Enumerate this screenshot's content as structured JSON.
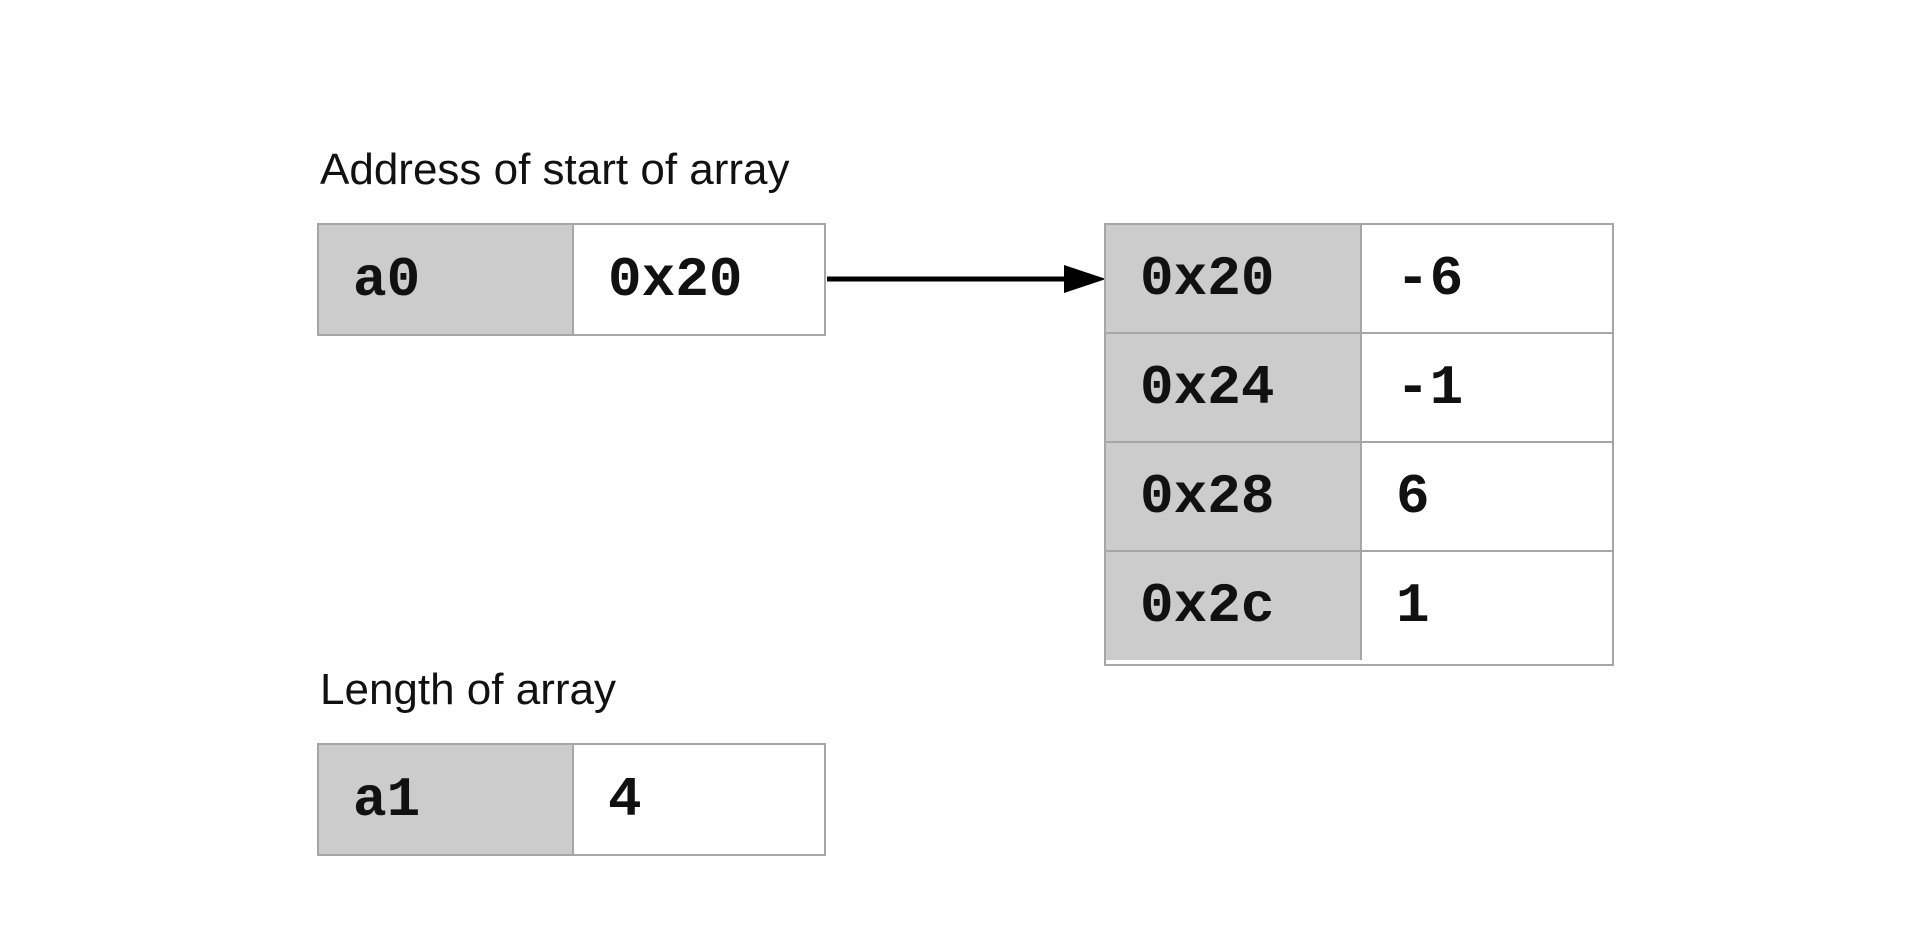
{
  "captions": {
    "address": "Address of start of array",
    "length": "Length of array"
  },
  "registers": [
    {
      "name": "a0",
      "value": "0x20"
    },
    {
      "name": "a1",
      "value": "4"
    }
  ],
  "memory": [
    {
      "address": "0x20",
      "value": "-6"
    },
    {
      "address": "0x24",
      "value": "-1"
    },
    {
      "address": "0x28",
      "value": "6"
    },
    {
      "address": "0x2c",
      "value": "1"
    }
  ],
  "colors": {
    "label_fill": "#cccccc",
    "border": "#a6a6a6",
    "text": "#111111",
    "arrow": "#000000"
  }
}
